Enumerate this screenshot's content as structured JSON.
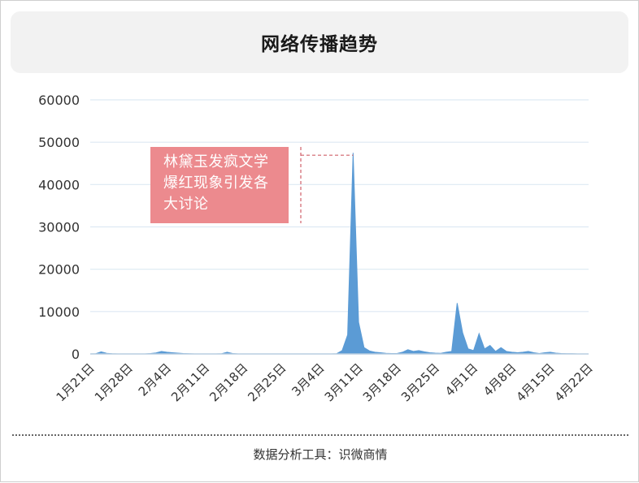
{
  "header": {
    "title": "网络传播趋势"
  },
  "annotation": {
    "text": "林黛玉发疯文学爆红现象引发各大讨论"
  },
  "footer": {
    "text": "数据分析工具：识微商情"
  },
  "colors": {
    "area": "#5b9bd5",
    "grid": "#dde9f3",
    "axis": "#b8cde0",
    "annotation_bg": "#ec8a8e",
    "annotation_line": "#d0606a"
  },
  "chart_data": {
    "type": "area",
    "title": "",
    "xlabel": "",
    "ylabel": "",
    "ylim": [
      0,
      60000
    ],
    "yticks": [
      0,
      10000,
      20000,
      30000,
      40000,
      50000,
      60000
    ],
    "xticks": [
      "1月21日",
      "1月28日",
      "2月4日",
      "2月11日",
      "2月18日",
      "2月25日",
      "3月4日",
      "3月11日",
      "3月18日",
      "3月25日",
      "4月1日",
      "4月8日",
      "4月15日",
      "4月22日"
    ],
    "grid": true,
    "points": [
      [
        "1月21日",
        0
      ],
      [
        "1月22日",
        50
      ],
      [
        "1月23日",
        500
      ],
      [
        "1月24日",
        150
      ],
      [
        "1月25日",
        50
      ],
      [
        "1月26日",
        0
      ],
      [
        "1月27日",
        0
      ],
      [
        "1月28日",
        0
      ],
      [
        "1月29日",
        0
      ],
      [
        "1月30日",
        0
      ],
      [
        "1月31日",
        0
      ],
      [
        "2月1日",
        100
      ],
      [
        "2月2日",
        250
      ],
      [
        "2月3日",
        600
      ],
      [
        "2月4日",
        400
      ],
      [
        "2月5日",
        300
      ],
      [
        "2月6日",
        200
      ],
      [
        "2月7日",
        100
      ],
      [
        "2月8日",
        50
      ],
      [
        "2月9日",
        0
      ],
      [
        "2月10日",
        0
      ],
      [
        "2月11日",
        0
      ],
      [
        "2月12日",
        0
      ],
      [
        "2月13日",
        0
      ],
      [
        "2月14日",
        50
      ],
      [
        "2月15日",
        400
      ],
      [
        "2月16日",
        100
      ],
      [
        "2月17日",
        0
      ],
      [
        "2月18日",
        0
      ],
      [
        "2月19日",
        0
      ],
      [
        "2月20日",
        0
      ],
      [
        "2月21日",
        0
      ],
      [
        "2月22日",
        0
      ],
      [
        "2月23日",
        0
      ],
      [
        "2月24日",
        0
      ],
      [
        "2月25日",
        0
      ],
      [
        "2月26日",
        0
      ],
      [
        "2月27日",
        0
      ],
      [
        "2月28日",
        0
      ],
      [
        "3月1日",
        0
      ],
      [
        "3月2日",
        0
      ],
      [
        "3月3日",
        0
      ],
      [
        "3月4日",
        0
      ],
      [
        "3月5日",
        0
      ],
      [
        "3月6日",
        0
      ],
      [
        "3月7日",
        50
      ],
      [
        "3月8日",
        800
      ],
      [
        "3月9日",
        4500
      ],
      [
        "3月10日",
        47500
      ],
      [
        "3月11日",
        7500
      ],
      [
        "3月12日",
        1500
      ],
      [
        "3月13日",
        700
      ],
      [
        "3月14日",
        400
      ],
      [
        "3月15日",
        300
      ],
      [
        "3月16日",
        150
      ],
      [
        "3月17日",
        100
      ],
      [
        "3月18日",
        100
      ],
      [
        "3月19日",
        400
      ],
      [
        "3月20日",
        1000
      ],
      [
        "3月21日",
        600
      ],
      [
        "3月22日",
        800
      ],
      [
        "3月23日",
        500
      ],
      [
        "3月24日",
        300
      ],
      [
        "3月25日",
        200
      ],
      [
        "3月26日",
        150
      ],
      [
        "3月27日",
        400
      ],
      [
        "3月28日",
        600
      ],
      [
        "3月29日",
        12000
      ],
      [
        "3月30日",
        5000
      ],
      [
        "3月31日",
        1200
      ],
      [
        "4月1日",
        800
      ],
      [
        "4月2日",
        4800
      ],
      [
        "4月3日",
        1200
      ],
      [
        "4月4日",
        2000
      ],
      [
        "4月5日",
        600
      ],
      [
        "4月6日",
        1500
      ],
      [
        "4月7日",
        600
      ],
      [
        "4月8日",
        400
      ],
      [
        "4月9日",
        300
      ],
      [
        "4月10日",
        400
      ],
      [
        "4月11日",
        600
      ],
      [
        "4月12日",
        300
      ],
      [
        "4月13日",
        100
      ],
      [
        "4月14日",
        300
      ],
      [
        "4月15日",
        400
      ],
      [
        "4月16日",
        200
      ],
      [
        "4月17日",
        100
      ],
      [
        "4月18日",
        50
      ],
      [
        "4月19日",
        50
      ],
      [
        "4月20日",
        0
      ],
      [
        "4月21日",
        0
      ],
      [
        "4月22日",
        0
      ]
    ]
  }
}
